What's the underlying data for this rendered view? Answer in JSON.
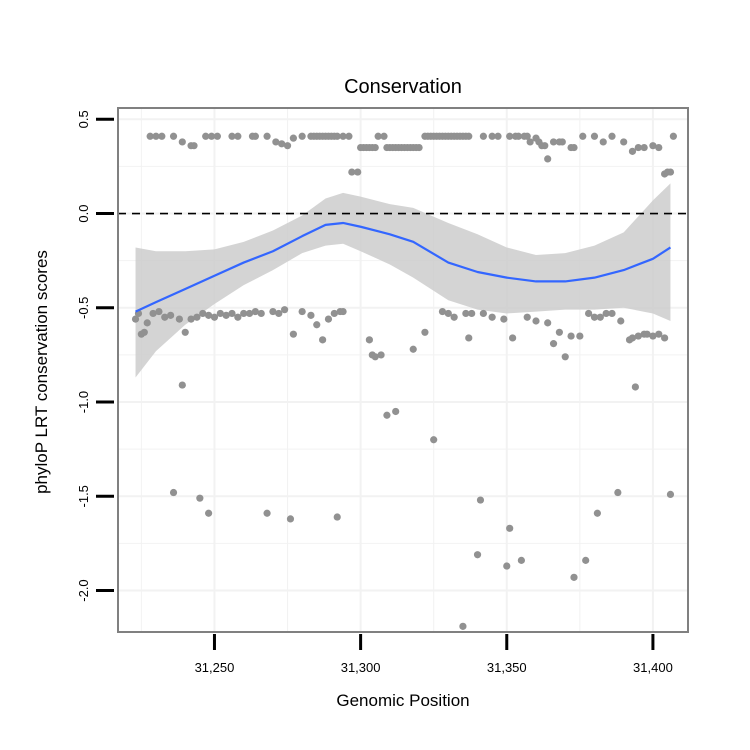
{
  "chart_data": {
    "type": "scatter",
    "title": "Conservation",
    "xlabel": "Genomic Position",
    "ylabel": "phyloP LRT conservation scores",
    "xlim": [
      31217,
      31412
    ],
    "ylim": [
      -2.22,
      0.56
    ],
    "x_ticks": [
      31250,
      31300,
      31350,
      31400
    ],
    "x_tick_labels": [
      "31,250",
      "31,300",
      "31,350",
      "31,400"
    ],
    "y_ticks": [
      0.5,
      0.0,
      -0.5,
      -1.0,
      -1.5,
      -2.0
    ],
    "y_tick_labels": [
      "0.5",
      "0.0",
      "-0.5",
      "-1.0",
      "-1.5",
      "-2.0"
    ],
    "grid": true,
    "legend": "none",
    "reference_line": {
      "y": 0.0,
      "style": "dashed",
      "color": "#000000"
    },
    "colors": {
      "points": "#919191",
      "smooth_line": "#3366ff",
      "ribbon": "#cccccc",
      "panel_border": "#808080",
      "grid": "#f2f2f2"
    },
    "series": [
      {
        "kind": "points",
        "points": [
          [
            31223,
            -0.56
          ],
          [
            31224,
            -0.53
          ],
          [
            31225,
            -0.64
          ],
          [
            31226,
            -0.63
          ],
          [
            31227,
            -0.58
          ],
          [
            31229,
            -0.53
          ],
          [
            31231,
            -0.52
          ],
          [
            31233,
            -0.55
          ],
          [
            31235,
            -0.54
          ],
          [
            31236,
            -1.48
          ],
          [
            31238,
            -0.56
          ],
          [
            31239,
            -0.91
          ],
          [
            31240,
            -0.63
          ],
          [
            31242,
            -0.56
          ],
          [
            31244,
            -0.55
          ],
          [
            31245,
            -1.51
          ],
          [
            31246,
            -0.53
          ],
          [
            31248,
            -1.59
          ],
          [
            31248,
            -0.54
          ],
          [
            31250,
            -0.55
          ],
          [
            31252,
            -0.53
          ],
          [
            31254,
            -0.54
          ],
          [
            31256,
            -0.53
          ],
          [
            31258,
            -0.55
          ],
          [
            31260,
            -0.53
          ],
          [
            31262,
            -0.53
          ],
          [
            31264,
            -0.52
          ],
          [
            31266,
            -0.53
          ],
          [
            31268,
            -1.59
          ],
          [
            31270,
            -0.52
          ],
          [
            31272,
            -0.53
          ],
          [
            31274,
            -0.51
          ],
          [
            31276,
            -1.62
          ],
          [
            31277,
            -0.64
          ],
          [
            31280,
            -0.52
          ],
          [
            31283,
            -0.54
          ],
          [
            31285,
            -0.59
          ],
          [
            31287,
            -0.67
          ],
          [
            31289,
            -0.56
          ],
          [
            31291,
            -0.53
          ],
          [
            31292,
            -1.61
          ],
          [
            31293,
            -0.52
          ],
          [
            31294,
            -0.52
          ],
          [
            31303,
            -0.67
          ],
          [
            31304,
            -0.75
          ],
          [
            31305,
            -0.76
          ],
          [
            31307,
            -0.75
          ],
          [
            31309,
            -1.07
          ],
          [
            31312,
            -1.05
          ],
          [
            31318,
            -0.72
          ],
          [
            31322,
            -0.63
          ],
          [
            31325,
            -1.2
          ],
          [
            31328,
            -0.52
          ],
          [
            31330,
            -0.53
          ],
          [
            31332,
            -0.55
          ],
          [
            31335,
            -2.19
          ],
          [
            31336,
            -0.53
          ],
          [
            31337,
            -0.66
          ],
          [
            31338,
            -0.53
          ],
          [
            31340,
            -1.81
          ],
          [
            31341,
            -1.52
          ],
          [
            31342,
            -0.53
          ],
          [
            31345,
            -0.55
          ],
          [
            31349,
            -0.56
          ],
          [
            31350,
            -1.87
          ],
          [
            31351,
            -1.67
          ],
          [
            31352,
            -0.66
          ],
          [
            31355,
            -1.84
          ],
          [
            31357,
            -0.55
          ],
          [
            31360,
            -0.57
          ],
          [
            31364,
            -0.58
          ],
          [
            31366,
            -0.69
          ],
          [
            31368,
            -0.63
          ],
          [
            31370,
            -0.76
          ],
          [
            31372,
            -0.65
          ],
          [
            31373,
            -1.93
          ],
          [
            31375,
            -0.65
          ],
          [
            31377,
            -1.84
          ],
          [
            31378,
            -0.53
          ],
          [
            31380,
            -0.55
          ],
          [
            31381,
            -1.59
          ],
          [
            31382,
            -0.55
          ],
          [
            31384,
            -0.53
          ],
          [
            31386,
            -0.53
          ],
          [
            31388,
            -1.48
          ],
          [
            31389,
            -0.57
          ],
          [
            31392,
            -0.67
          ],
          [
            31393,
            -0.66
          ],
          [
            31394,
            -0.92
          ],
          [
            31395,
            -0.65
          ],
          [
            31397,
            -0.64
          ],
          [
            31398,
            -0.64
          ],
          [
            31400,
            -0.65
          ],
          [
            31402,
            -0.64
          ],
          [
            31404,
            -0.66
          ],
          [
            31406,
            -1.49
          ],
          [
            31228,
            0.41
          ],
          [
            31230,
            0.41
          ],
          [
            31232,
            0.41
          ],
          [
            31236,
            0.41
          ],
          [
            31239,
            0.38
          ],
          [
            31242,
            0.36
          ],
          [
            31243,
            0.36
          ],
          [
            31247,
            0.41
          ],
          [
            31249,
            0.41
          ],
          [
            31251,
            0.41
          ],
          [
            31256,
            0.41
          ],
          [
            31258,
            0.41
          ],
          [
            31263,
            0.41
          ],
          [
            31264,
            0.41
          ],
          [
            31268,
            0.41
          ],
          [
            31271,
            0.38
          ],
          [
            31273,
            0.37
          ],
          [
            31275,
            0.36
          ],
          [
            31277,
            0.4
          ],
          [
            31280,
            0.41
          ],
          [
            31283,
            0.41
          ],
          [
            31284,
            0.41
          ],
          [
            31285,
            0.41
          ],
          [
            31286,
            0.41
          ],
          [
            31287,
            0.41
          ],
          [
            31288,
            0.41
          ],
          [
            31289,
            0.41
          ],
          [
            31290,
            0.41
          ],
          [
            31291,
            0.41
          ],
          [
            31292,
            0.41
          ],
          [
            31294,
            0.41
          ],
          [
            31296,
            0.41
          ],
          [
            31297,
            0.22
          ],
          [
            31299,
            0.22
          ],
          [
            31300,
            0.35
          ],
          [
            31301,
            0.35
          ],
          [
            31302,
            0.35
          ],
          [
            31303,
            0.35
          ],
          [
            31304,
            0.35
          ],
          [
            31305,
            0.35
          ],
          [
            31306,
            0.41
          ],
          [
            31308,
            0.41
          ],
          [
            31309,
            0.35
          ],
          [
            31310,
            0.35
          ],
          [
            31311,
            0.35
          ],
          [
            31312,
            0.35
          ],
          [
            31313,
            0.35
          ],
          [
            31314,
            0.35
          ],
          [
            31315,
            0.35
          ],
          [
            31316,
            0.35
          ],
          [
            31317,
            0.35
          ],
          [
            31318,
            0.35
          ],
          [
            31319,
            0.35
          ],
          [
            31320,
            0.35
          ],
          [
            31322,
            0.41
          ],
          [
            31323,
            0.41
          ],
          [
            31324,
            0.41
          ],
          [
            31325,
            0.41
          ],
          [
            31326,
            0.41
          ],
          [
            31327,
            0.41
          ],
          [
            31328,
            0.41
          ],
          [
            31329,
            0.41
          ],
          [
            31330,
            0.41
          ],
          [
            31331,
            0.41
          ],
          [
            31332,
            0.41
          ],
          [
            31333,
            0.41
          ],
          [
            31334,
            0.41
          ],
          [
            31335,
            0.41
          ],
          [
            31336,
            0.41
          ],
          [
            31337,
            0.41
          ],
          [
            31342,
            0.41
          ],
          [
            31345,
            0.41
          ],
          [
            31347,
            0.41
          ],
          [
            31351,
            0.41
          ],
          [
            31353,
            0.41
          ],
          [
            31354,
            0.41
          ],
          [
            31356,
            0.41
          ],
          [
            31357,
            0.41
          ],
          [
            31358,
            0.38
          ],
          [
            31360,
            0.4
          ],
          [
            31361,
            0.38
          ],
          [
            31362,
            0.36
          ],
          [
            31363,
            0.36
          ],
          [
            31364,
            0.29
          ],
          [
            31366,
            0.38
          ],
          [
            31368,
            0.38
          ],
          [
            31369,
            0.38
          ],
          [
            31372,
            0.35
          ],
          [
            31373,
            0.35
          ],
          [
            31376,
            0.41
          ],
          [
            31380,
            0.41
          ],
          [
            31383,
            0.38
          ],
          [
            31386,
            0.41
          ],
          [
            31390,
            0.38
          ],
          [
            31393,
            0.33
          ],
          [
            31395,
            0.35
          ],
          [
            31397,
            0.35
          ],
          [
            31400,
            0.36
          ],
          [
            31402,
            0.35
          ],
          [
            31404,
            0.21
          ],
          [
            31405,
            0.22
          ],
          [
            31406,
            0.22
          ],
          [
            31407,
            0.41
          ]
        ]
      },
      {
        "kind": "loess_smooth",
        "line": [
          [
            31223,
            -0.52
          ],
          [
            31230,
            -0.47
          ],
          [
            31240,
            -0.4
          ],
          [
            31250,
            -0.33
          ],
          [
            31260,
            -0.26
          ],
          [
            31270,
            -0.2
          ],
          [
            31280,
            -0.12
          ],
          [
            31288,
            -0.06
          ],
          [
            31294,
            -0.05
          ],
          [
            31300,
            -0.07
          ],
          [
            31310,
            -0.11
          ],
          [
            31318,
            -0.15
          ],
          [
            31330,
            -0.26
          ],
          [
            31340,
            -0.31
          ],
          [
            31350,
            -0.34
          ],
          [
            31360,
            -0.36
          ],
          [
            31370,
            -0.36
          ],
          [
            31380,
            -0.34
          ],
          [
            31390,
            -0.3
          ],
          [
            31400,
            -0.24
          ],
          [
            31406,
            -0.18
          ]
        ],
        "ribbon_upper": [
          [
            31223,
            -0.18
          ],
          [
            31230,
            -0.2
          ],
          [
            31240,
            -0.2
          ],
          [
            31250,
            -0.19
          ],
          [
            31260,
            -0.15
          ],
          [
            31270,
            -0.09
          ],
          [
            31280,
            -0.01
          ],
          [
            31288,
            0.08
          ],
          [
            31294,
            0.11
          ],
          [
            31300,
            0.09
          ],
          [
            31310,
            0.05
          ],
          [
            31318,
            0.03
          ],
          [
            31330,
            -0.05
          ],
          [
            31340,
            -0.11
          ],
          [
            31350,
            -0.18
          ],
          [
            31360,
            -0.22
          ],
          [
            31370,
            -0.21
          ],
          [
            31380,
            -0.17
          ],
          [
            31390,
            -0.1
          ],
          [
            31400,
            0.07
          ],
          [
            31406,
            0.16
          ]
        ],
        "ribbon_lower": [
          [
            31223,
            -0.87
          ],
          [
            31230,
            -0.73
          ],
          [
            31240,
            -0.59
          ],
          [
            31250,
            -0.48
          ],
          [
            31260,
            -0.38
          ],
          [
            31270,
            -0.3
          ],
          [
            31280,
            -0.21
          ],
          [
            31288,
            -0.17
          ],
          [
            31294,
            -0.16
          ],
          [
            31300,
            -0.2
          ],
          [
            31310,
            -0.27
          ],
          [
            31318,
            -0.34
          ],
          [
            31330,
            -0.46
          ],
          [
            31340,
            -0.51
          ],
          [
            31350,
            -0.53
          ],
          [
            31360,
            -0.52
          ],
          [
            31370,
            -0.51
          ],
          [
            31380,
            -0.51
          ],
          [
            31390,
            -0.5
          ],
          [
            31400,
            -0.53
          ],
          [
            31406,
            -0.57
          ]
        ]
      }
    ]
  }
}
